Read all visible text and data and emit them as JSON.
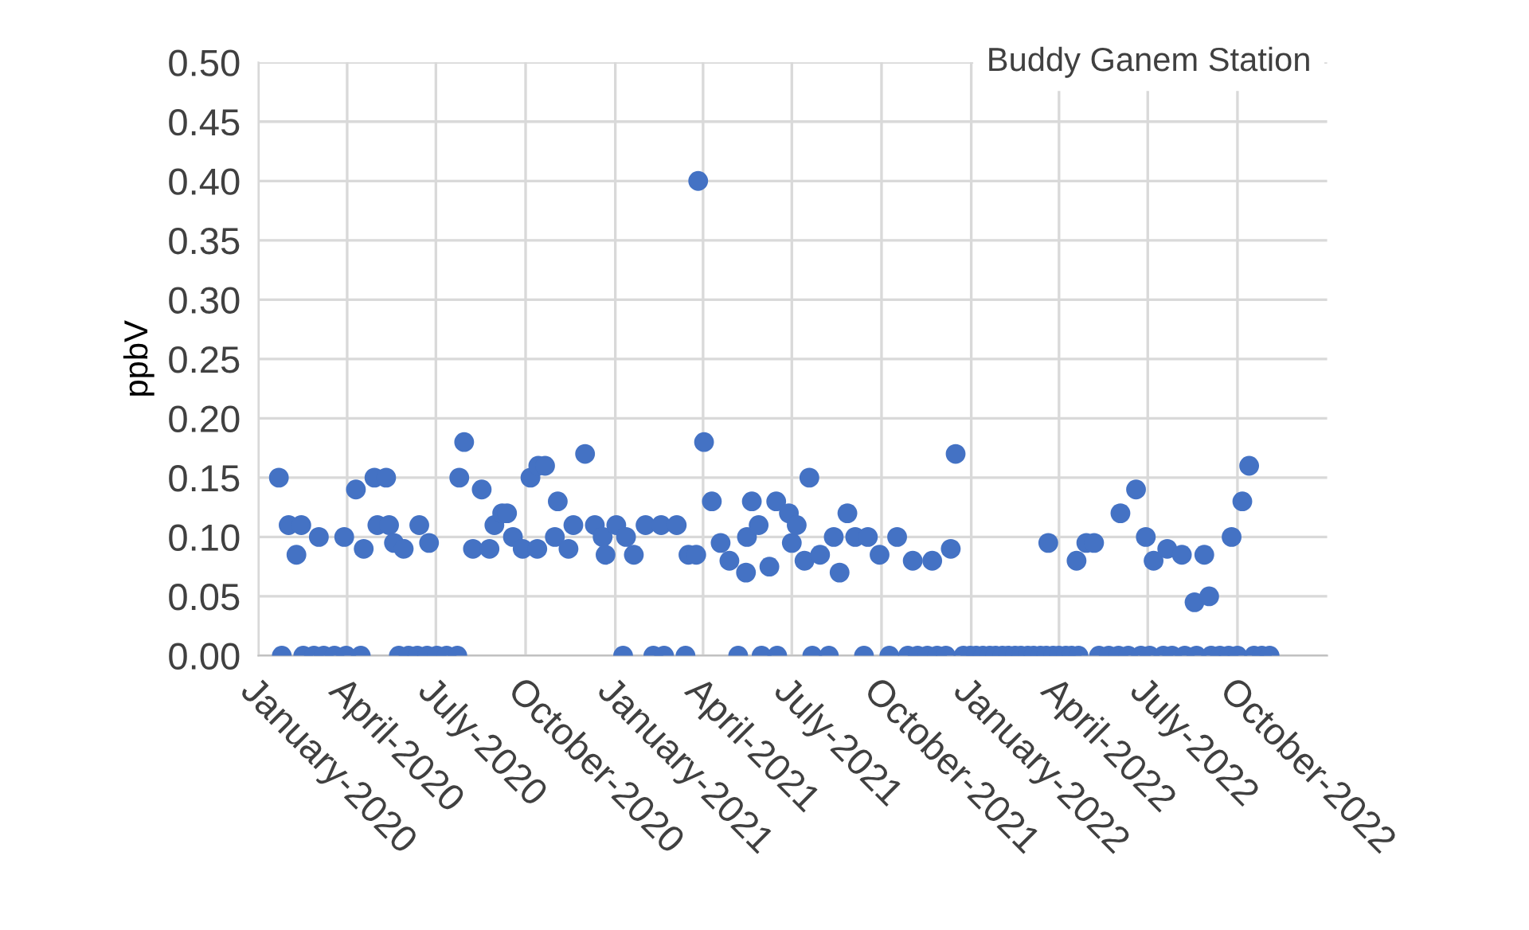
{
  "chart_data": {
    "type": "scatter",
    "title": "Buddy Ganem Station",
    "ylabel": "ppbV",
    "x": [
      "2020-01-22",
      "2020-01-25",
      "2020-02-01",
      "2020-02-09",
      "2020-02-14",
      "2020-02-16",
      "2020-02-27",
      "2020-03-03",
      "2020-03-08",
      "2020-03-19",
      "2020-03-31",
      "2020-03-29",
      "2020-04-10",
      "2020-04-15",
      "2020-04-18",
      "2020-04-29",
      "2020-05-02",
      "2020-05-11",
      "2020-05-14",
      "2020-05-19",
      "2020-05-24",
      "2020-05-29",
      "2020-06-03",
      "2020-06-12",
      "2020-06-14",
      "2020-06-22",
      "2020-06-24",
      "2020-07-02",
      "2020-07-12",
      "2020-07-23",
      "2020-07-25",
      "2020-07-30",
      "2020-08-08",
      "2020-08-17",
      "2020-08-25",
      "2020-08-30",
      "2020-09-07",
      "2020-09-12",
      "2020-09-18",
      "2020-09-28",
      "2020-10-06",
      "2020-10-13",
      "2020-10-14",
      "2020-10-21",
      "2020-10-31",
      "2020-11-03",
      "2020-11-14",
      "2020-11-19",
      "2020-12-01",
      "2020-12-11",
      "2020-12-19",
      "2020-12-22",
      "2021-01-02",
      "2021-01-09",
      "2021-01-12",
      "2021-01-20",
      "2021-02-01",
      "2021-02-09",
      "2021-02-17",
      "2021-02-20",
      "2021-03-05",
      "2021-03-14",
      "2021-03-17",
      "2021-03-25",
      "2021-03-27",
      "2021-04-02",
      "2021-04-10",
      "2021-04-19",
      "2021-04-28",
      "2021-05-07",
      "2021-05-15",
      "2021-05-16",
      "2021-05-21",
      "2021-05-28",
      "2021-05-31",
      "2021-06-08",
      "2021-06-15",
      "2021-06-16",
      "2021-06-28",
      "2021-07-01",
      "2021-07-06",
      "2021-07-14",
      "2021-07-19",
      "2021-07-22",
      "2021-07-30",
      "2021-08-08",
      "2021-08-13",
      "2021-08-19",
      "2021-08-27",
      "2021-09-04",
      "2021-09-13",
      "2021-09-17",
      "2021-09-29",
      "2021-10-09",
      "2021-10-17",
      "2021-10-28",
      "2021-11-02",
      "2021-11-07",
      "2021-11-17",
      "2021-11-22",
      "2021-11-27",
      "2021-12-06",
      "2021-12-11",
      "2021-12-16",
      "2021-12-24",
      "2021-12-31",
      "2022-01-06",
      "2022-01-13",
      "2022-01-20",
      "2022-01-26",
      "2022-02-02",
      "2022-02-08",
      "2022-02-15",
      "2022-02-21",
      "2022-02-28",
      "2022-03-06",
      "2022-03-13",
      "2022-03-19",
      "2022-03-21",
      "2022-03-26",
      "2022-04-01",
      "2022-04-08",
      "2022-04-14",
      "2022-04-19",
      "2022-04-21",
      "2022-04-29",
      "2022-05-07",
      "2022-05-12",
      "2022-05-22",
      "2022-06-01",
      "2022-06-03",
      "2022-06-11",
      "2022-06-19",
      "2022-06-24",
      "2022-06-29",
      "2022-07-03",
      "2022-07-07",
      "2022-07-17",
      "2022-07-21",
      "2022-07-26",
      "2022-08-05",
      "2022-08-08",
      "2022-08-18",
      "2022-08-20",
      "2022-08-28",
      "2022-09-02",
      "2022-09-04",
      "2022-09-13",
      "2022-09-22",
      "2022-09-25",
      "2022-10-01",
      "2022-10-06",
      "2022-10-13",
      "2022-10-18",
      "2022-10-26",
      "2022-11-03"
    ],
    "series": [
      {
        "color": "#4472c4",
        "values": [
          0.15,
          0,
          0.11,
          0.085,
          0.11,
          0,
          0,
          0.1,
          0,
          0,
          0,
          0.1,
          0.14,
          0,
          0.09,
          0.15,
          0.11,
          0.15,
          0.11,
          0.095,
          0,
          0.09,
          0,
          0,
          0.11,
          0,
          0.095,
          0,
          0,
          0,
          0.15,
          0.18,
          0.09,
          0.14,
          0.09,
          0.11,
          0.12,
          0.12,
          0.1,
          0.09,
          0.15,
          0.09,
          0.16,
          0.16,
          0.1,
          0.13,
          0.09,
          0.11,
          0.17,
          0.11,
          0.1,
          0.085,
          0.11,
          0,
          0.1,
          0.085,
          0.11,
          0,
          0.11,
          0,
          0.11,
          0,
          0.085,
          0.085,
          0.4,
          0.18,
          0.13,
          0.095,
          0.08,
          0,
          0.07,
          0.1,
          0.13,
          0.11,
          0,
          0.075,
          0.13,
          0,
          0.12,
          0.095,
          0.11,
          0.08,
          0.15,
          0,
          0.085,
          0,
          0.1,
          0.07,
          0.12,
          0.1,
          0,
          0.1,
          0.085,
          0,
          0.1,
          0,
          0.08,
          0,
          0,
          0.08,
          0,
          0,
          0.09,
          0.17,
          0,
          0,
          0,
          0,
          0,
          0,
          0,
          0,
          0,
          0,
          0,
          0,
          0,
          0,
          0.095,
          0,
          0,
          0,
          0,
          0.08,
          0,
          0.095,
          0.095,
          0,
          0,
          0,
          0.12,
          0,
          0.14,
          0,
          0.1,
          0,
          0.08,
          0,
          0.09,
          0,
          0.085,
          0,
          0.045,
          0,
          0.085,
          0.05,
          0,
          0,
          0,
          0.1,
          0,
          0.13,
          0.16,
          0,
          0,
          0
        ]
      }
    ],
    "xlim": [
      "2020-01-01",
      "2023-01-01"
    ],
    "xticks": [
      {
        "value": "2020-01-01",
        "label": "January-2020"
      },
      {
        "value": "2020-04-01",
        "label": "April-2020"
      },
      {
        "value": "2020-07-01",
        "label": "July-2020"
      },
      {
        "value": "2020-10-01",
        "label": "October-2020"
      },
      {
        "value": "2021-01-01",
        "label": "January-2021"
      },
      {
        "value": "2021-04-01",
        "label": "April-2021"
      },
      {
        "value": "2021-07-01",
        "label": "July-2021"
      },
      {
        "value": "2021-10-01",
        "label": "October-2021"
      },
      {
        "value": "2022-01-01",
        "label": "January-2022"
      },
      {
        "value": "2022-04-01",
        "label": "April-2022"
      },
      {
        "value": "2022-07-01",
        "label": "July-2022"
      },
      {
        "value": "2022-10-01",
        "label": "October-2022"
      }
    ],
    "ylim": [
      0,
      0.5
    ],
    "yticks": [
      {
        "value": 0,
        "label": "0.00"
      },
      {
        "value": 0.05,
        "label": "0.05"
      },
      {
        "value": 0.1,
        "label": "0.10"
      },
      {
        "value": 0.15,
        "label": "0.15"
      },
      {
        "value": 0.2,
        "label": "0.20"
      },
      {
        "value": 0.25,
        "label": "0.25"
      },
      {
        "value": 0.3,
        "label": "0.30"
      },
      {
        "value": 0.35,
        "label": "0.35"
      },
      {
        "value": 0.4,
        "label": "0.40"
      },
      {
        "value": 0.45,
        "label": "0.45"
      },
      {
        "value": 0.5,
        "label": "0.50"
      }
    ],
    "grid": true,
    "marker": "circle",
    "legend": false
  }
}
